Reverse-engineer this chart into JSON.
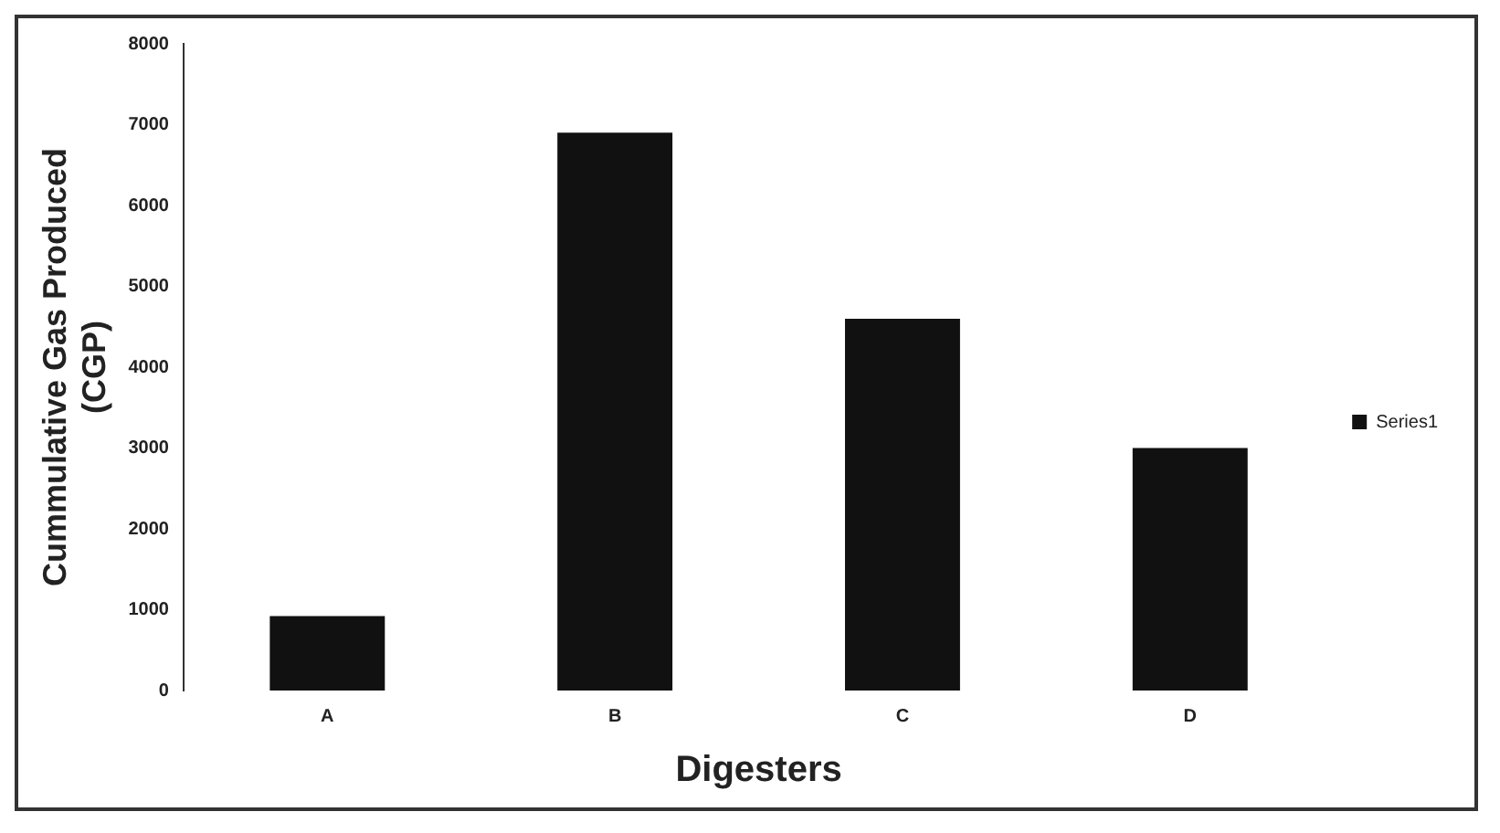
{
  "chart_data": {
    "type": "bar",
    "xlabel": "Digesters",
    "ylabel": "Cummulative Gas Produced (CGP)",
    "categories": [
      "A",
      "B",
      "C",
      "D"
    ],
    "series": [
      {
        "name": "Series1",
        "color": "#111111",
        "values": [
          920,
          6900,
          4600,
          3000
        ]
      }
    ],
    "ylim": [
      0,
      8000
    ],
    "yticks": [
      0,
      1000,
      2000,
      3000,
      4000,
      5000,
      6000,
      7000,
      8000
    ],
    "grid": false,
    "legend": "right"
  }
}
